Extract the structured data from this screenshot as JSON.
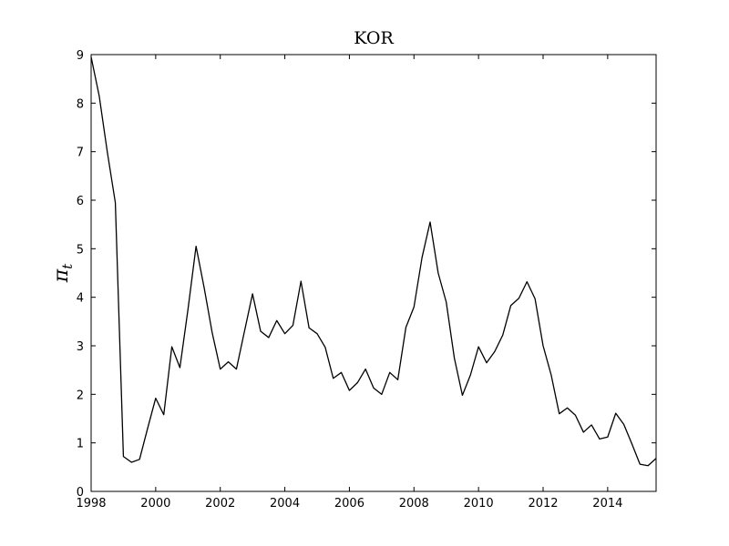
{
  "chart_data": {
    "type": "line",
    "title": "KOR",
    "xlabel": "",
    "ylabel": "π",
    "ylabel_subscript": "t",
    "xlim": [
      1998,
      2015.5
    ],
    "ylim": [
      0,
      9
    ],
    "x_ticks": [
      1998,
      2000,
      2002,
      2004,
      2006,
      2008,
      2010,
      2012,
      2014
    ],
    "x_tick_labels": [
      "1998",
      "2000",
      "2002",
      "2004",
      "2006",
      "2008",
      "2010",
      "2012",
      "2014"
    ],
    "y_ticks": [
      0,
      1,
      2,
      3,
      4,
      5,
      6,
      7,
      8,
      9
    ],
    "y_tick_labels": [
      "0",
      "1",
      "2",
      "3",
      "4",
      "5",
      "6",
      "7",
      "8",
      "9"
    ],
    "grid": false,
    "line_color": "#000000",
    "series": [
      {
        "x": [
          1998.0,
          1998.25,
          1998.5,
          1998.75,
          1999.0,
          1999.25,
          1999.5,
          1999.75,
          2000.0,
          2000.25,
          2000.5,
          2000.75,
          2001.0,
          2001.25,
          2001.5,
          2001.75,
          2002.0,
          2002.25,
          2002.5,
          2002.75,
          2003.0,
          2003.25,
          2003.5,
          2003.75,
          2004.0,
          2004.25,
          2004.5,
          2004.75,
          2005.0,
          2005.25,
          2005.5,
          2005.75,
          2006.0,
          2006.25,
          2006.5,
          2006.75,
          2007.0,
          2007.25,
          2007.5,
          2007.75,
          2008.0,
          2008.25,
          2008.5,
          2008.75,
          2009.0,
          2009.25,
          2009.5,
          2009.75,
          2010.0,
          2010.25,
          2010.5,
          2010.75,
          2011.0,
          2011.25,
          2011.5,
          2011.75,
          2012.0,
          2012.25,
          2012.5,
          2012.75,
          2013.0,
          2013.25,
          2013.5,
          2013.75,
          2014.0,
          2014.25,
          2014.5,
          2014.75,
          2015.0,
          2015.25,
          2015.5
        ],
        "values": [
          8.95,
          8.15,
          7.0,
          5.95,
          0.72,
          0.6,
          0.66,
          1.3,
          1.92,
          1.58,
          2.98,
          2.55,
          3.75,
          5.05,
          4.2,
          3.27,
          2.52,
          2.67,
          2.52,
          3.3,
          4.07,
          3.3,
          3.17,
          3.52,
          3.25,
          3.42,
          4.33,
          3.37,
          3.25,
          2.97,
          2.33,
          2.45,
          2.08,
          2.24,
          2.52,
          2.13,
          2.0,
          2.45,
          2.3,
          3.38,
          3.8,
          4.82,
          5.55,
          4.5,
          3.9,
          2.75,
          1.98,
          2.4,
          2.98,
          2.65,
          2.88,
          3.22,
          3.83,
          3.98,
          4.32,
          3.97,
          3.0,
          2.4,
          1.6,
          1.72,
          1.57,
          1.22,
          1.37,
          1.08,
          1.12,
          1.61,
          1.38,
          0.98,
          0.56,
          0.53,
          0.68
        ]
      }
    ]
  }
}
